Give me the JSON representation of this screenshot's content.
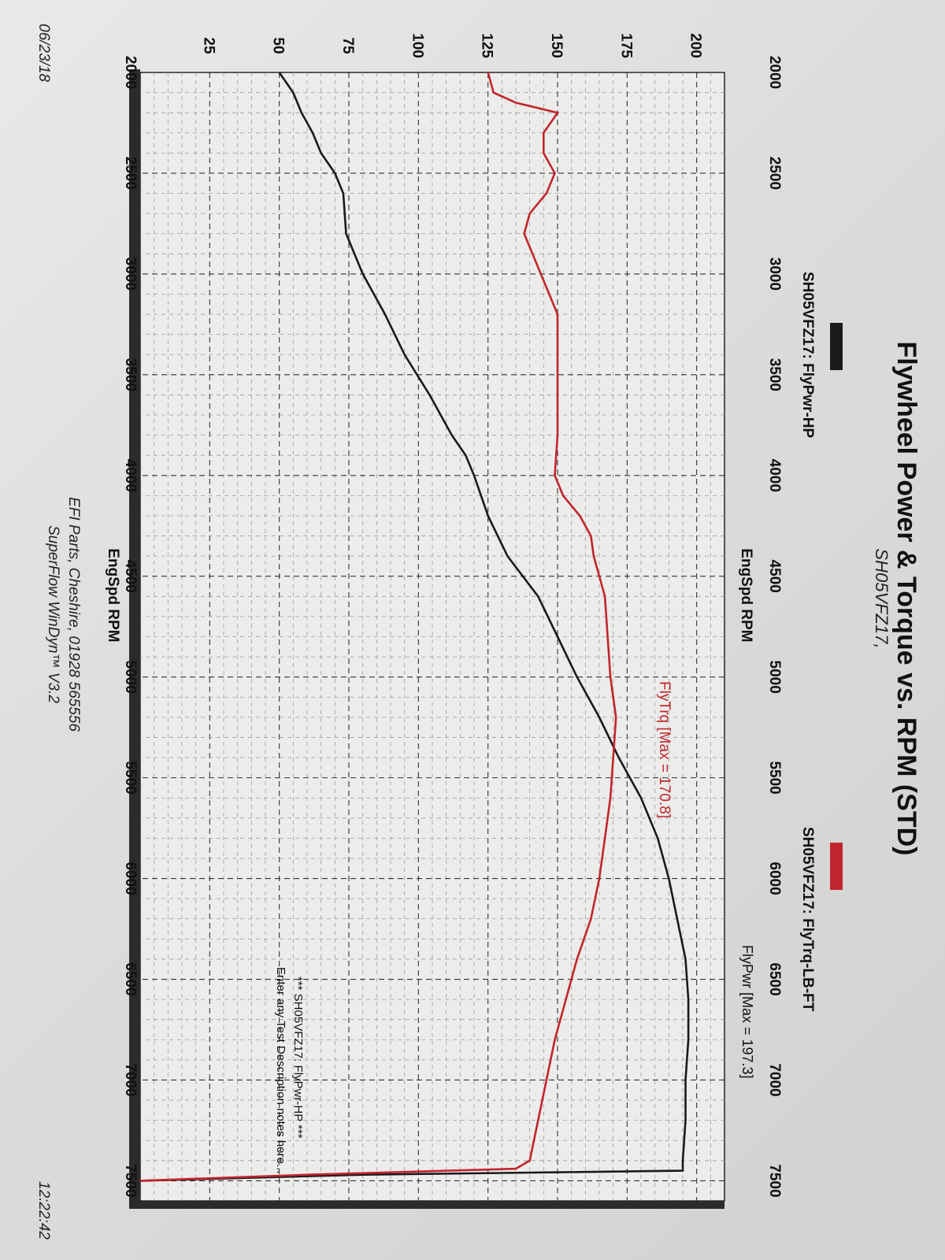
{
  "chart_data": {
    "type": "line",
    "title": "Flywheel Power & Torque vs. RPM (STD)",
    "subtitle": "SH05VFZ17,",
    "xlabel": "EngSpd RPM",
    "xlim": [
      2000,
      7600
    ],
    "x_ticks": [
      2000,
      2500,
      3000,
      3500,
      4000,
      4500,
      5000,
      5500,
      6000,
      6500,
      7000,
      7500
    ],
    "ylim": [
      0,
      210
    ],
    "y_ticks": [
      25,
      50,
      75,
      100,
      125,
      150,
      175,
      200
    ],
    "grid": true,
    "legend": [
      {
        "label": "SH05VFZ17: FlyPwr-HP",
        "color": "#1a1a1a"
      },
      {
        "label": "SH05VFZ17: FlyTrq-LB-FT",
        "color": "#c0262d"
      }
    ],
    "series": [
      {
        "name": "SH05VFZ17: FlyPwr-HP",
        "color": "#1a1a1a",
        "x": [
          2000,
          2100,
          2200,
          2300,
          2400,
          2500,
          2600,
          2800,
          3000,
          3200,
          3400,
          3600,
          3800,
          3900,
          4000,
          4200,
          4400,
          4600,
          4800,
          5000,
          5200,
          5400,
          5600,
          5800,
          6000,
          6200,
          6400,
          6600,
          6800,
          7000,
          7200,
          7400,
          7450,
          7470,
          7500
        ],
        "y": [
          50,
          55,
          58,
          62,
          65,
          70,
          73,
          74,
          80,
          88,
          95,
          104,
          112,
          117,
          120,
          125,
          132,
          143,
          150,
          157,
          165,
          172,
          180,
          186,
          190,
          193,
          196,
          197,
          197,
          196,
          196,
          195,
          195,
          80,
          0
        ]
      },
      {
        "name": "SH05VFZ17: FlyTrq-LB-FT",
        "color": "#c0262d",
        "x": [
          2000,
          2100,
          2150,
          2200,
          2300,
          2400,
          2500,
          2600,
          2700,
          2800,
          3000,
          3200,
          3400,
          3600,
          3800,
          4000,
          4100,
          4200,
          4300,
          4400,
          4500,
          4600,
          4800,
          5000,
          5200,
          5400,
          5600,
          5800,
          6000,
          6200,
          6400,
          6600,
          6800,
          7000,
          7200,
          7400,
          7440,
          7470,
          7500
        ],
        "y": [
          125,
          127,
          135,
          150,
          145,
          145,
          149,
          146,
          140,
          138,
          144,
          150,
          150,
          150,
          150,
          149,
          152,
          158,
          162,
          163,
          165,
          167,
          168,
          169,
          171,
          170,
          169,
          167,
          165,
          162,
          157,
          153,
          149,
          146,
          143,
          140,
          135,
          60,
          0
        ]
      }
    ],
    "annotations": {
      "power_max": "FlyPwr [Max = 197.3]",
      "torque_max": "FlyTrq [Max = 170.8]"
    },
    "notes": [
      "*** SH05VFZ17: FlyPwr-HP ***",
      "Enter any Test Description notes here..."
    ]
  },
  "footer": {
    "line1": "EFI Parts, Cheshire, 01928 565556",
    "line2": "SuperFlow WinDyn™ V3.2"
  },
  "date": "06/23/18",
  "time": "12:22:42"
}
